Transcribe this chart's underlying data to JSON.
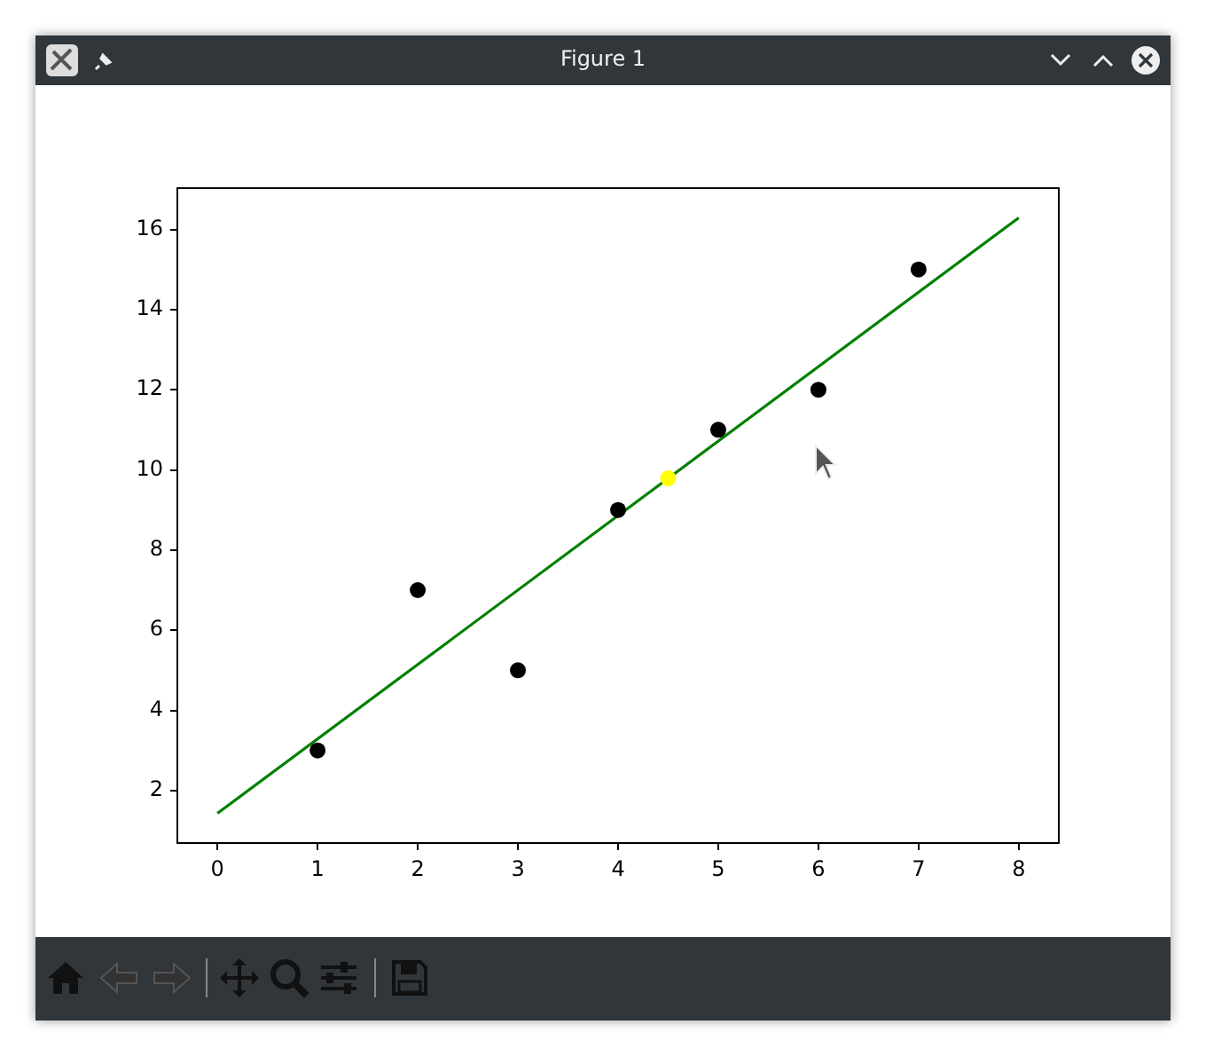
{
  "chart_data": {
    "type": "scatter",
    "title": "Figure 1",
    "series": [
      {
        "color": "#000000",
        "marker": "circle",
        "x": [
          1,
          2,
          3,
          4,
          5,
          6,
          7
        ],
        "values": [
          3,
          7,
          5,
          9,
          11,
          12,
          15
        ]
      },
      {
        "color": "#ffff00",
        "marker": "circle",
        "x": [
          4.5
        ],
        "values": [
          9.79
        ]
      },
      {
        "type": "line",
        "color": "#008000",
        "marker": "none",
        "x": [
          0,
          8
        ],
        "values": [
          1.43,
          16.29
        ]
      }
    ],
    "xlim": [
      -0.4,
      8.4
    ],
    "xticks": [
      0,
      1,
      2,
      3,
      4,
      5,
      6,
      7,
      8
    ],
    "ylim": [
      0.69,
      17.03
    ],
    "yticks": [
      2,
      4,
      6,
      8,
      10,
      12,
      14,
      16
    ],
    "grid": false,
    "legend": false
  }
}
